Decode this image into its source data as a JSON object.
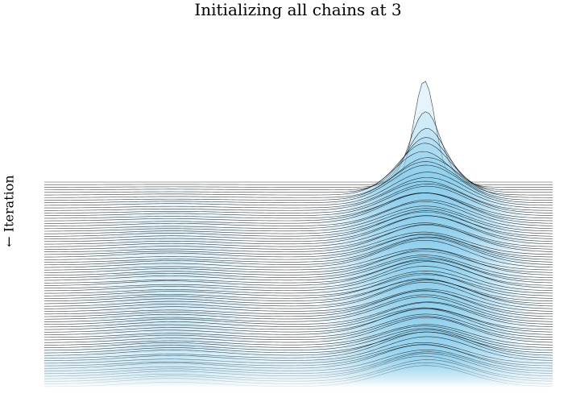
{
  "chart_data": {
    "type": "area",
    "variant": "ridgeline",
    "title": "Initializing all chains at 3",
    "ylabel": "← Iteration",
    "xlabel": "",
    "grid": false,
    "legend": "none",
    "colors": {
      "fill": "#87ceeb",
      "line": "#000000",
      "background": "#ffffff"
    },
    "num_ridges": 80,
    "initial_value": 3,
    "x_range": [
      -6,
      6
    ],
    "modes": [
      {
        "location": -3,
        "spread": 1.0,
        "final_weight": 0.2
      },
      {
        "location": 3,
        "spread": 1.0,
        "final_weight": 0.8
      }
    ]
  }
}
